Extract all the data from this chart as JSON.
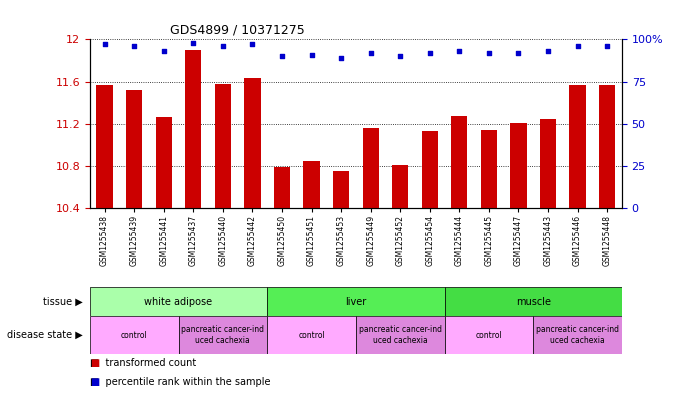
{
  "title": "GDS4899 / 10371275",
  "samples": [
    "GSM1255438",
    "GSM1255439",
    "GSM1255441",
    "GSM1255437",
    "GSM1255440",
    "GSM1255442",
    "GSM1255450",
    "GSM1255451",
    "GSM1255453",
    "GSM1255449",
    "GSM1255452",
    "GSM1255454",
    "GSM1255444",
    "GSM1255445",
    "GSM1255447",
    "GSM1255443",
    "GSM1255446",
    "GSM1255448"
  ],
  "bar_values": [
    11.57,
    11.52,
    11.26,
    11.9,
    11.58,
    11.63,
    10.79,
    10.85,
    10.75,
    11.16,
    10.81,
    11.13,
    11.27,
    11.14,
    11.21,
    11.25,
    11.57,
    11.57
  ],
  "percentile_values": [
    97,
    96,
    93,
    98,
    96,
    97,
    90,
    91,
    89,
    92,
    90,
    92,
    93,
    92,
    92,
    93,
    96,
    96
  ],
  "ylim": [
    10.4,
    12.0
  ],
  "y2lim": [
    0,
    100
  ],
  "yticks": [
    10.4,
    10.8,
    11.2,
    11.6,
    12.0
  ],
  "ytick_labels": [
    "10.4",
    "10.8",
    "11.2",
    "11.6",
    "12"
  ],
  "y2ticks": [
    0,
    25,
    50,
    75,
    100
  ],
  "y2tick_labels": [
    "0",
    "25",
    "50",
    "75",
    "100%"
  ],
  "bar_color": "#cc0000",
  "dot_color": "#0000cc",
  "tissue_groups": [
    {
      "label": "white adipose",
      "start": 0,
      "end": 6,
      "color": "#aaffaa"
    },
    {
      "label": "liver",
      "start": 6,
      "end": 12,
      "color": "#55ee55"
    },
    {
      "label": "muscle",
      "start": 12,
      "end": 18,
      "color": "#44dd44"
    }
  ],
  "disease_groups": [
    {
      "label": "control",
      "start": 0,
      "end": 3,
      "color": "#ffaaff"
    },
    {
      "label": "pancreatic cancer-ind\nuced cachexia",
      "start": 3,
      "end": 6,
      "color": "#dd88dd"
    },
    {
      "label": "control",
      "start": 6,
      "end": 9,
      "color": "#ffaaff"
    },
    {
      "label": "pancreatic cancer-ind\nuced cachexia",
      "start": 9,
      "end": 12,
      "color": "#dd88dd"
    },
    {
      "label": "control",
      "start": 12,
      "end": 15,
      "color": "#ffaaff"
    },
    {
      "label": "pancreatic cancer-ind\nuced cachexia",
      "start": 15,
      "end": 18,
      "color": "#dd88dd"
    }
  ],
  "legend_red": "transformed count",
  "legend_blue": "percentile rank within the sample",
  "left_ylabel_color": "#cc0000",
  "right_ylabel_color": "#0000cc",
  "bg_color": "#f0f0f0"
}
